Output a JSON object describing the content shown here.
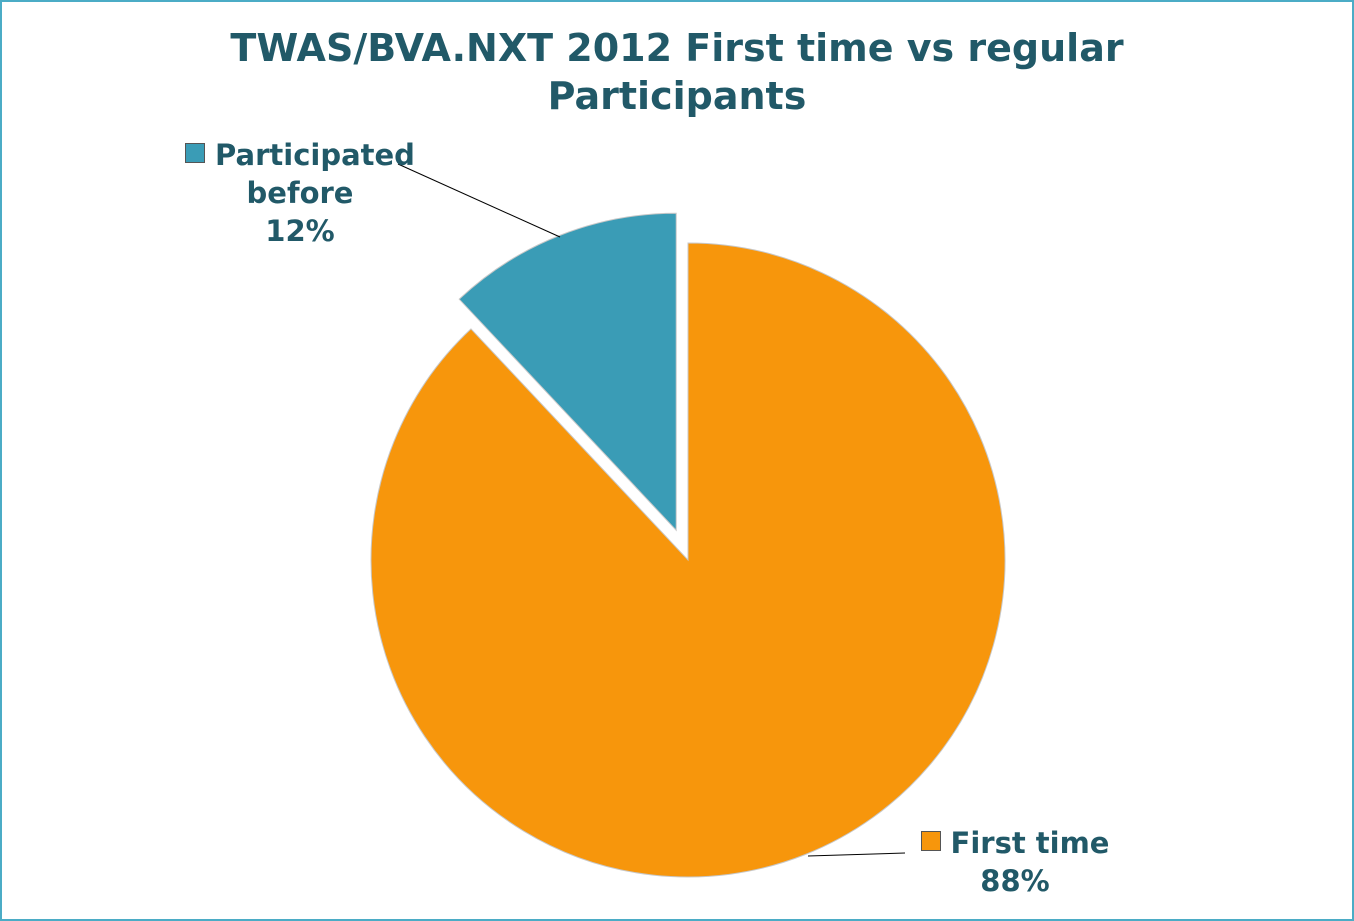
{
  "chart_data": {
    "type": "pie",
    "title": "TWAS/BVA.NXT 2012 First time vs regular Participants",
    "categories": [
      "First time",
      "Participated before"
    ],
    "values": [
      88,
      12
    ],
    "value_labels": [
      "88%",
      "12%"
    ],
    "colors": [
      "#f7960c",
      "#3a9cb6"
    ]
  }
}
